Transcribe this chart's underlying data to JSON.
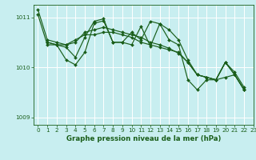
{
  "title": "Graphe pression niveau de la mer (hPa)",
  "bg_color": "#c8eef0",
  "grid_color": "#ffffff",
  "line_color": "#1a5e1a",
  "ylim": [
    1008.85,
    1011.25
  ],
  "xlim": [
    -0.5,
    23
  ],
  "yticks": [
    1009,
    1010,
    1011
  ],
  "xticks": [
    0,
    1,
    2,
    3,
    4,
    5,
    6,
    7,
    8,
    9,
    10,
    11,
    12,
    13,
    14,
    15,
    16,
    17,
    18,
    19,
    20,
    21,
    22,
    23
  ],
  "series": [
    [
      1011.05,
      1010.45,
      1010.45,
      1010.45,
      1010.55,
      1010.65,
      1010.65,
      1010.7,
      1010.7,
      1010.65,
      1010.6,
      1010.5,
      1010.45,
      1010.4,
      1010.35,
      1010.3,
      1010.1,
      1009.85,
      1009.8,
      1009.75,
      1010.1,
      1009.85,
      1009.55,
      null
    ],
    [
      1011.15,
      1010.55,
      1010.5,
      1010.45,
      1010.5,
      1010.7,
      1010.75,
      1010.8,
      1010.75,
      1010.7,
      1010.65,
      1010.6,
      1010.5,
      1010.45,
      1010.38,
      1010.28,
      1010.1,
      1009.85,
      1009.8,
      1009.75,
      1010.1,
      1009.9,
      1009.6,
      null
    ],
    [
      null,
      1010.5,
      1010.45,
      1010.4,
      1010.2,
      1010.6,
      1010.92,
      1010.97,
      1010.5,
      1010.5,
      1010.7,
      1010.55,
      1010.92,
      1010.87,
      1010.75,
      1010.55,
      1010.15,
      1009.85,
      1009.8,
      1009.75,
      1010.1,
      1009.85,
      1009.55,
      null
    ],
    [
      null,
      1010.5,
      1010.45,
      1010.15,
      1010.05,
      1010.3,
      1010.88,
      1010.93,
      1010.5,
      1010.5,
      1010.45,
      1010.82,
      1010.42,
      1010.87,
      1010.55,
      1010.45,
      1009.75,
      1009.55,
      1009.75,
      1009.75,
      1009.8,
      1009.85,
      1009.55,
      null
    ]
  ],
  "xlabel_fontsize": 6.2,
  "tick_fontsize": 5.2,
  "linewidth": 0.85,
  "marker_size": 2.0
}
